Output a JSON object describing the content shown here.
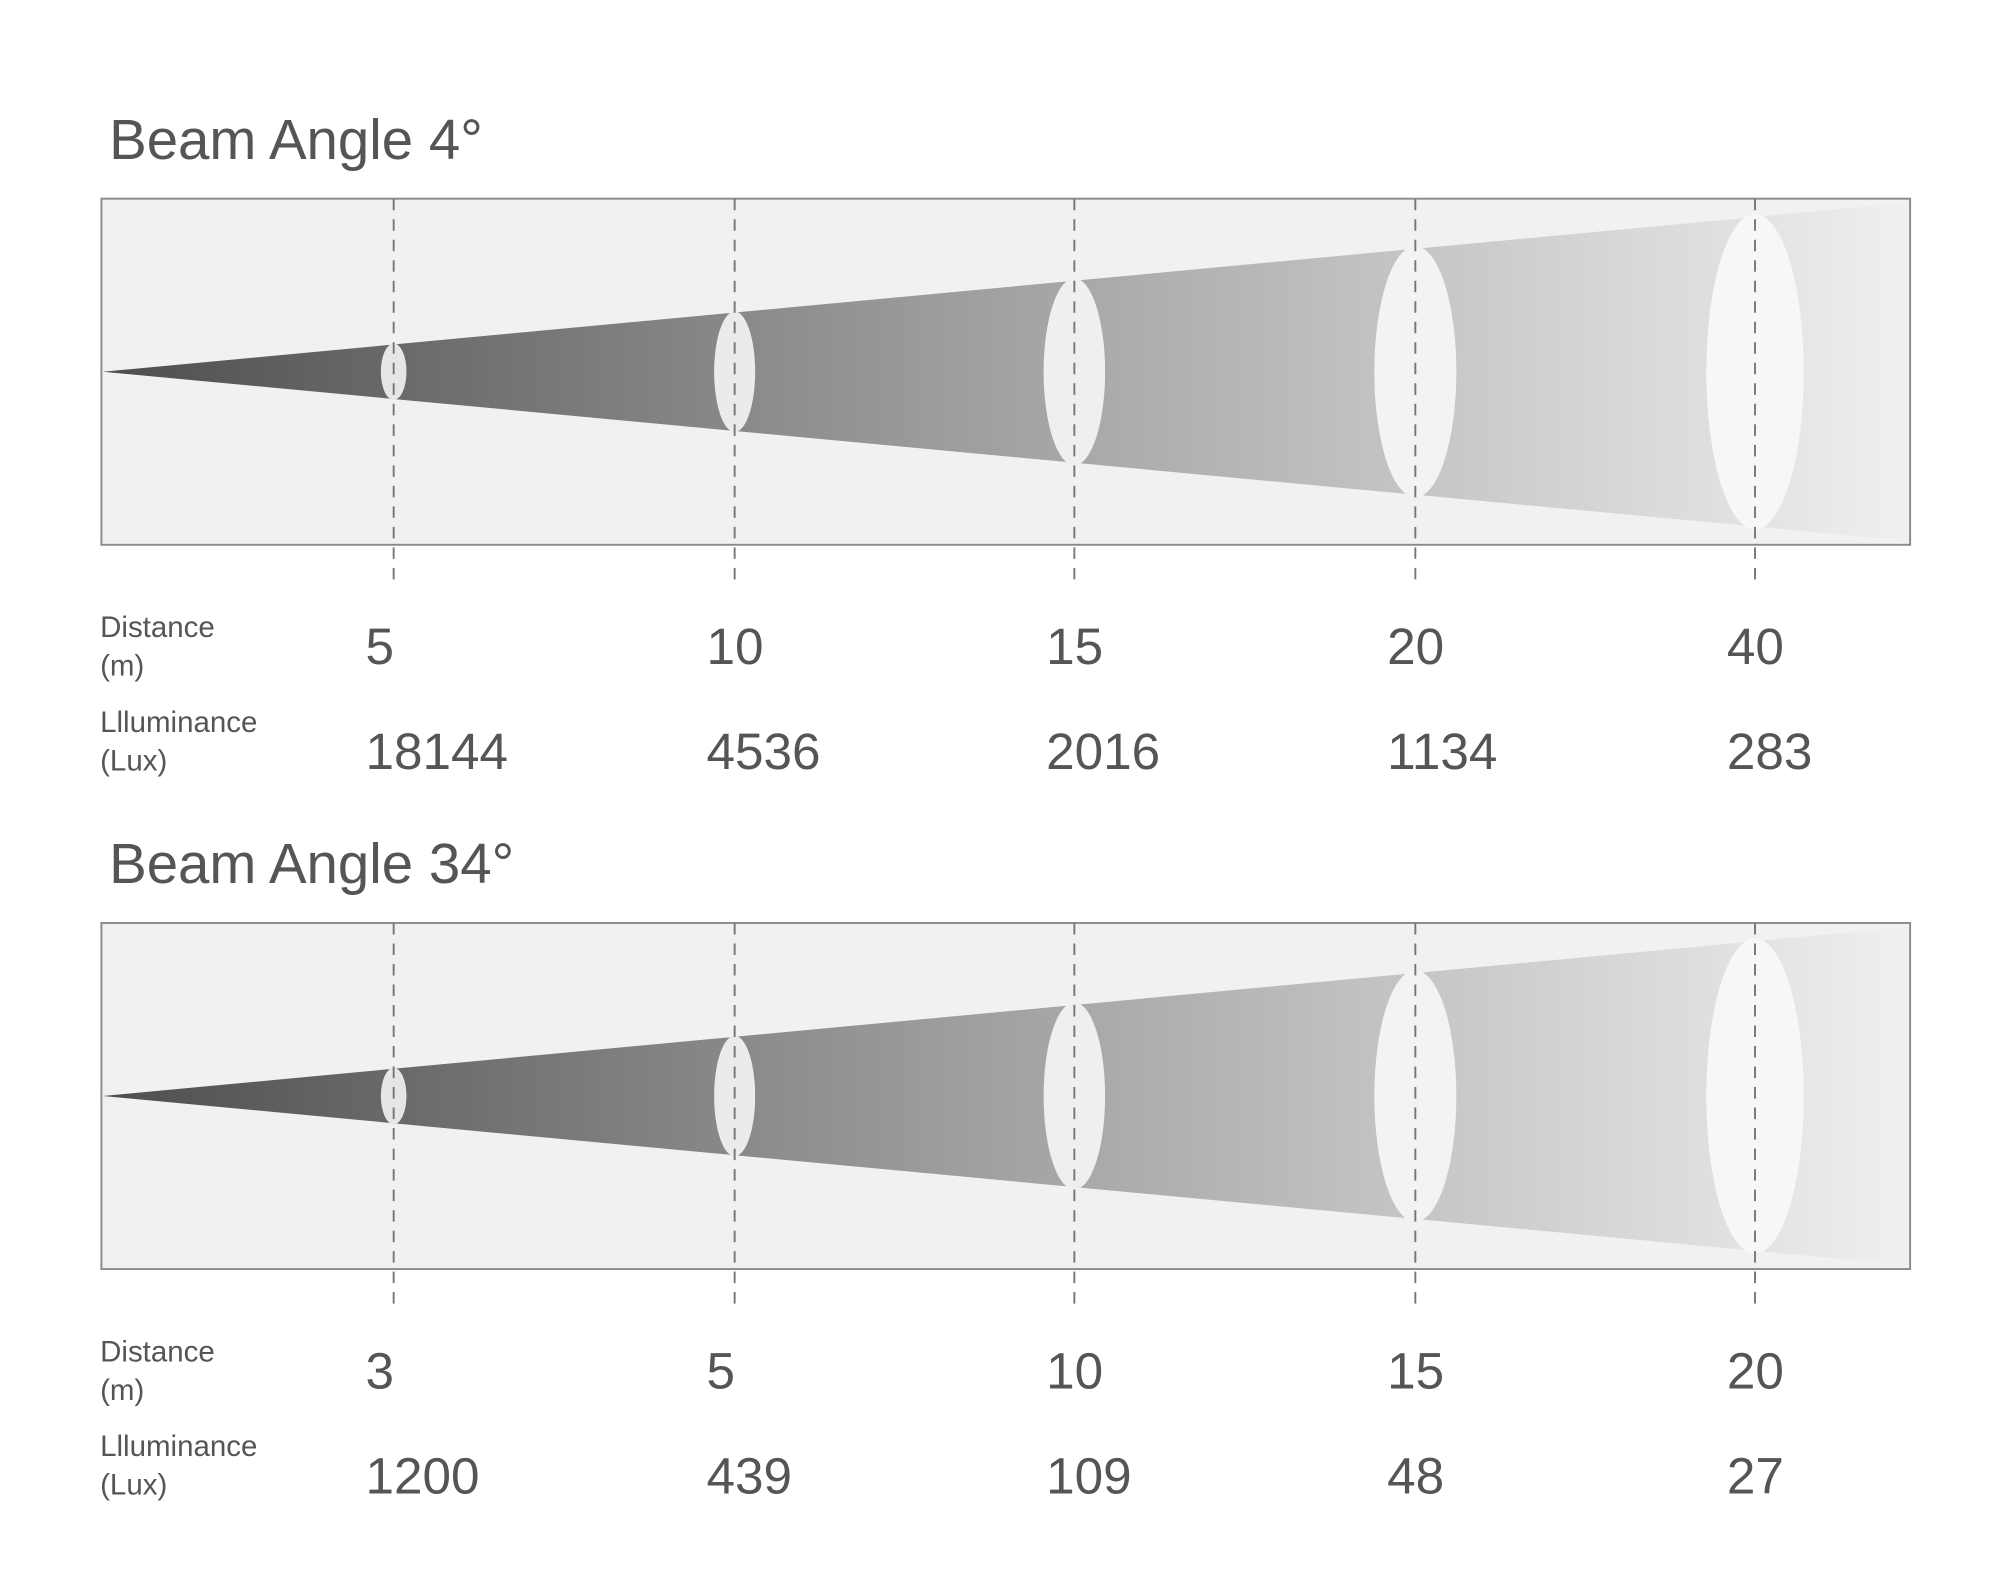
{
  "panels": [
    {
      "title": "Beam Angle 4°",
      "distance_label": [
        "Distance",
        "(m)"
      ],
      "illuminance_label": [
        "Llluminance",
        "(Lux)"
      ],
      "distances": [
        5,
        10,
        15,
        20,
        40
      ],
      "illuminances": [
        18144,
        4536,
        2016,
        1134,
        283
      ]
    },
    {
      "title": "Beam Angle 34°",
      "distance_label": [
        "Distance",
        "(m)"
      ],
      "illuminance_label": [
        "Llluminance",
        "(Lux)"
      ],
      "distances": [
        3,
        5,
        10,
        15,
        20
      ],
      "illuminances": [
        1200,
        439,
        109,
        48,
        27
      ]
    }
  ]
}
